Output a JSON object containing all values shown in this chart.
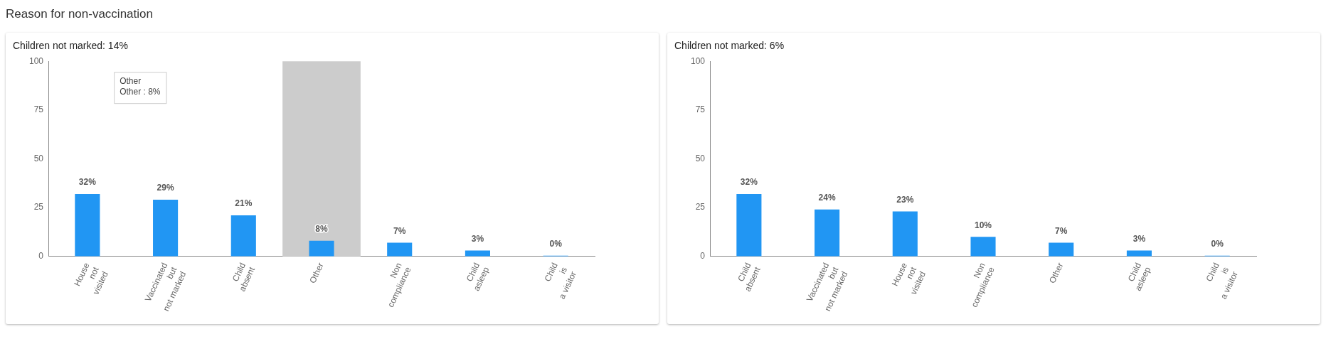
{
  "chart_data": [
    {
      "type": "bar",
      "title": "Reason for non-vaccination",
      "subtitle": "Children not marked: 14%",
      "categories": [
        "House\nnot\nvisited",
        "Vaccinated\nbut\nnot marked",
        "Child\nabsent",
        "Other",
        "Non\ncompliance",
        "Child\nasleep",
        "Child\nis\na visitor"
      ],
      "values": [
        32,
        29,
        21,
        8,
        7,
        3,
        0.4
      ],
      "value_labels": [
        "32%",
        "29%",
        "21%",
        "8%",
        "7%",
        "3%",
        "0%"
      ],
      "color": "#2196f3",
      "ylim": [
        0,
        100
      ],
      "yticks": [
        0,
        25,
        50,
        75,
        100
      ],
      "grid": false,
      "legend": false,
      "bands": [
        {
          "axis": "x",
          "from": "Other",
          "to": "Other",
          "color": "#cccccc"
        }
      ],
      "annotations": [
        "Other\nOther : 8%"
      ]
    },
    {
      "type": "bar",
      "subtitle": "Children not marked: 6%",
      "categories": [
        "Child\nabsent",
        "Vaccinated\nbut\nnot marked",
        "House\nnot\nvisited",
        "Non\ncompliance",
        "Other",
        "Child\nasleep",
        "Child\nis\na visitor"
      ],
      "values": [
        32,
        24,
        23,
        10,
        7,
        3,
        0.4
      ],
      "value_labels": [
        "32%",
        "24%",
        "23%",
        "10%",
        "7%",
        "3%",
        "0%"
      ],
      "color": "#2196f3",
      "ylim": [
        0,
        100
      ],
      "yticks": [
        0,
        25,
        50,
        75,
        100
      ],
      "grid": false,
      "legend": false
    }
  ]
}
